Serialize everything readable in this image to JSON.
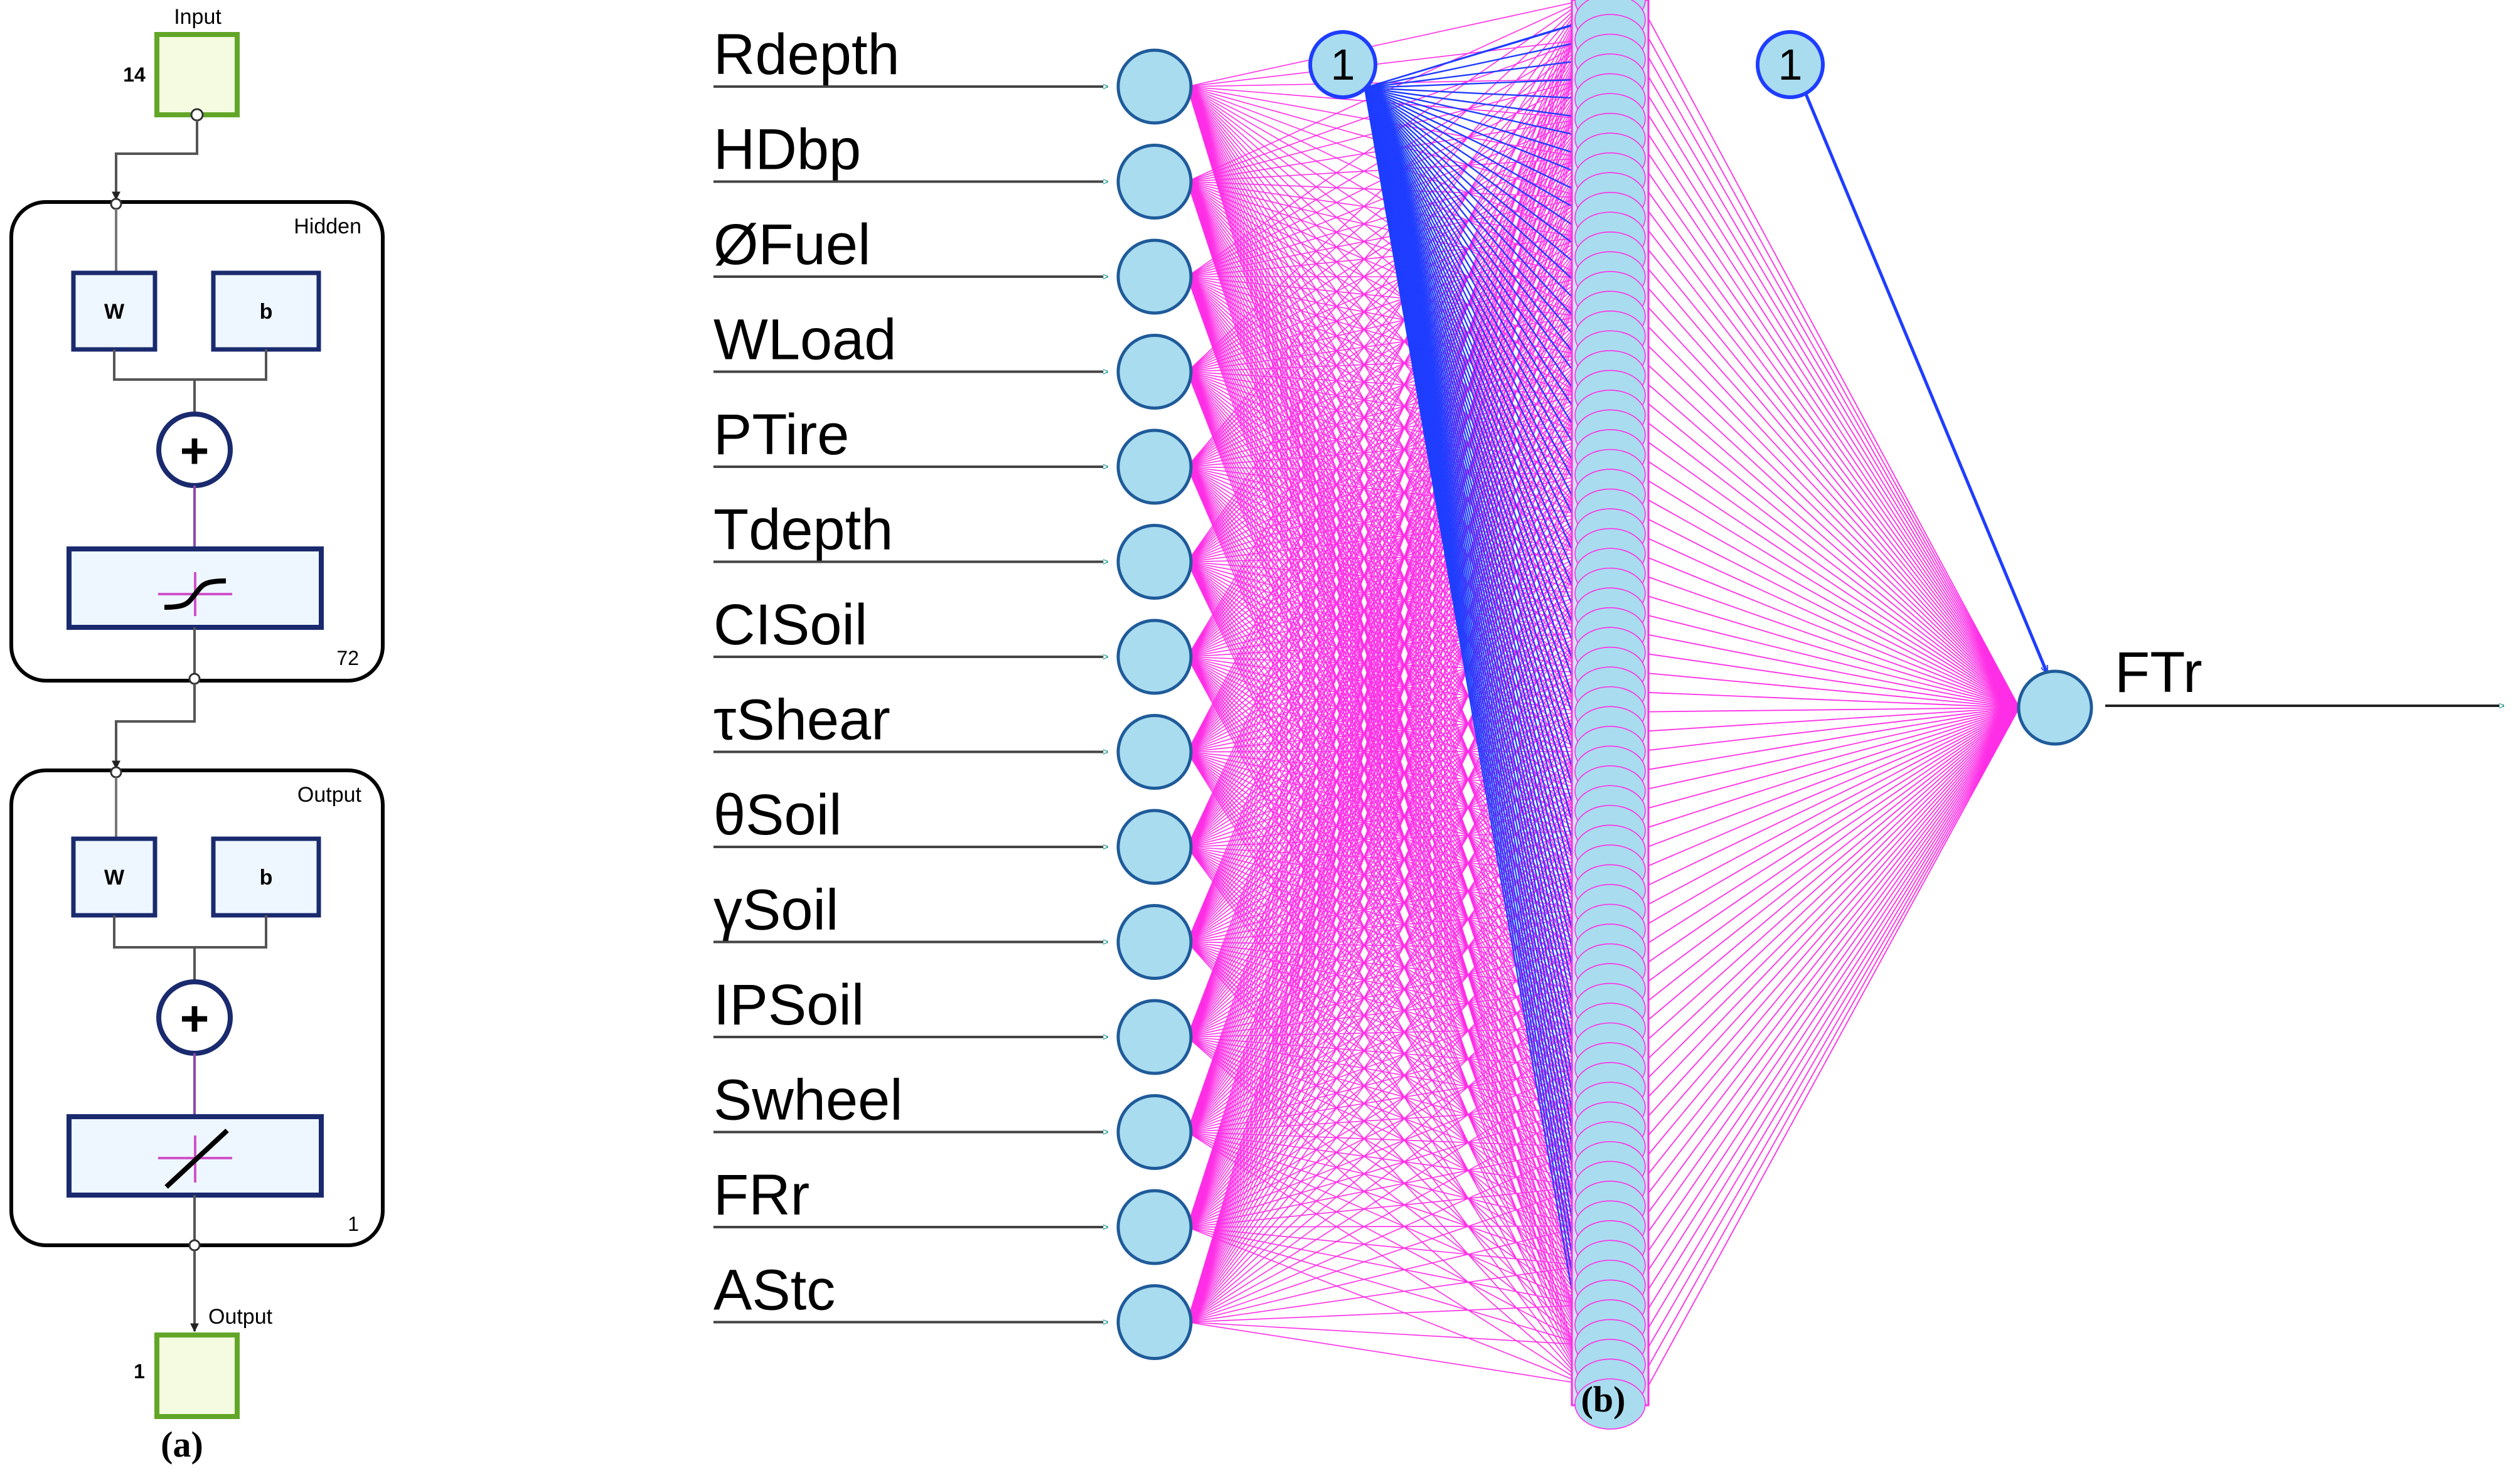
{
  "panel_a": {
    "input_label": "Input",
    "input_size": "14",
    "hidden": {
      "title": "Hidden",
      "w_label": "W",
      "b_label": "b",
      "size": "72"
    },
    "output": {
      "title": "Output",
      "w_label": "W",
      "b_label": "b",
      "size": "1"
    },
    "output_label": "Output",
    "output_size": "1",
    "caption": "(a)"
  },
  "panel_b": {
    "inputs": [
      "Rdepth",
      "HDbp",
      "ØFuel",
      "WLoad",
      "PTire",
      "Tdepth",
      "CISoil",
      "τShear",
      "θSoil",
      "γSoil",
      "IPSoil",
      "Swheel",
      "FRr",
      "AStc"
    ],
    "hidden_bias_label": "1",
    "output_bias_label": "1",
    "output_name": "FTr",
    "caption": "(b)"
  },
  "colors": {
    "input_box": "#f4fbe0",
    "input_border": "#62a628",
    "neuron_fill": "#a9dcef",
    "neuron_stroke": "#1f5b9a",
    "magenta": "#ff2ee6",
    "blue": "#1f3dff",
    "navy": "#1a2a6e",
    "block_fill": "#eef6ff"
  }
}
